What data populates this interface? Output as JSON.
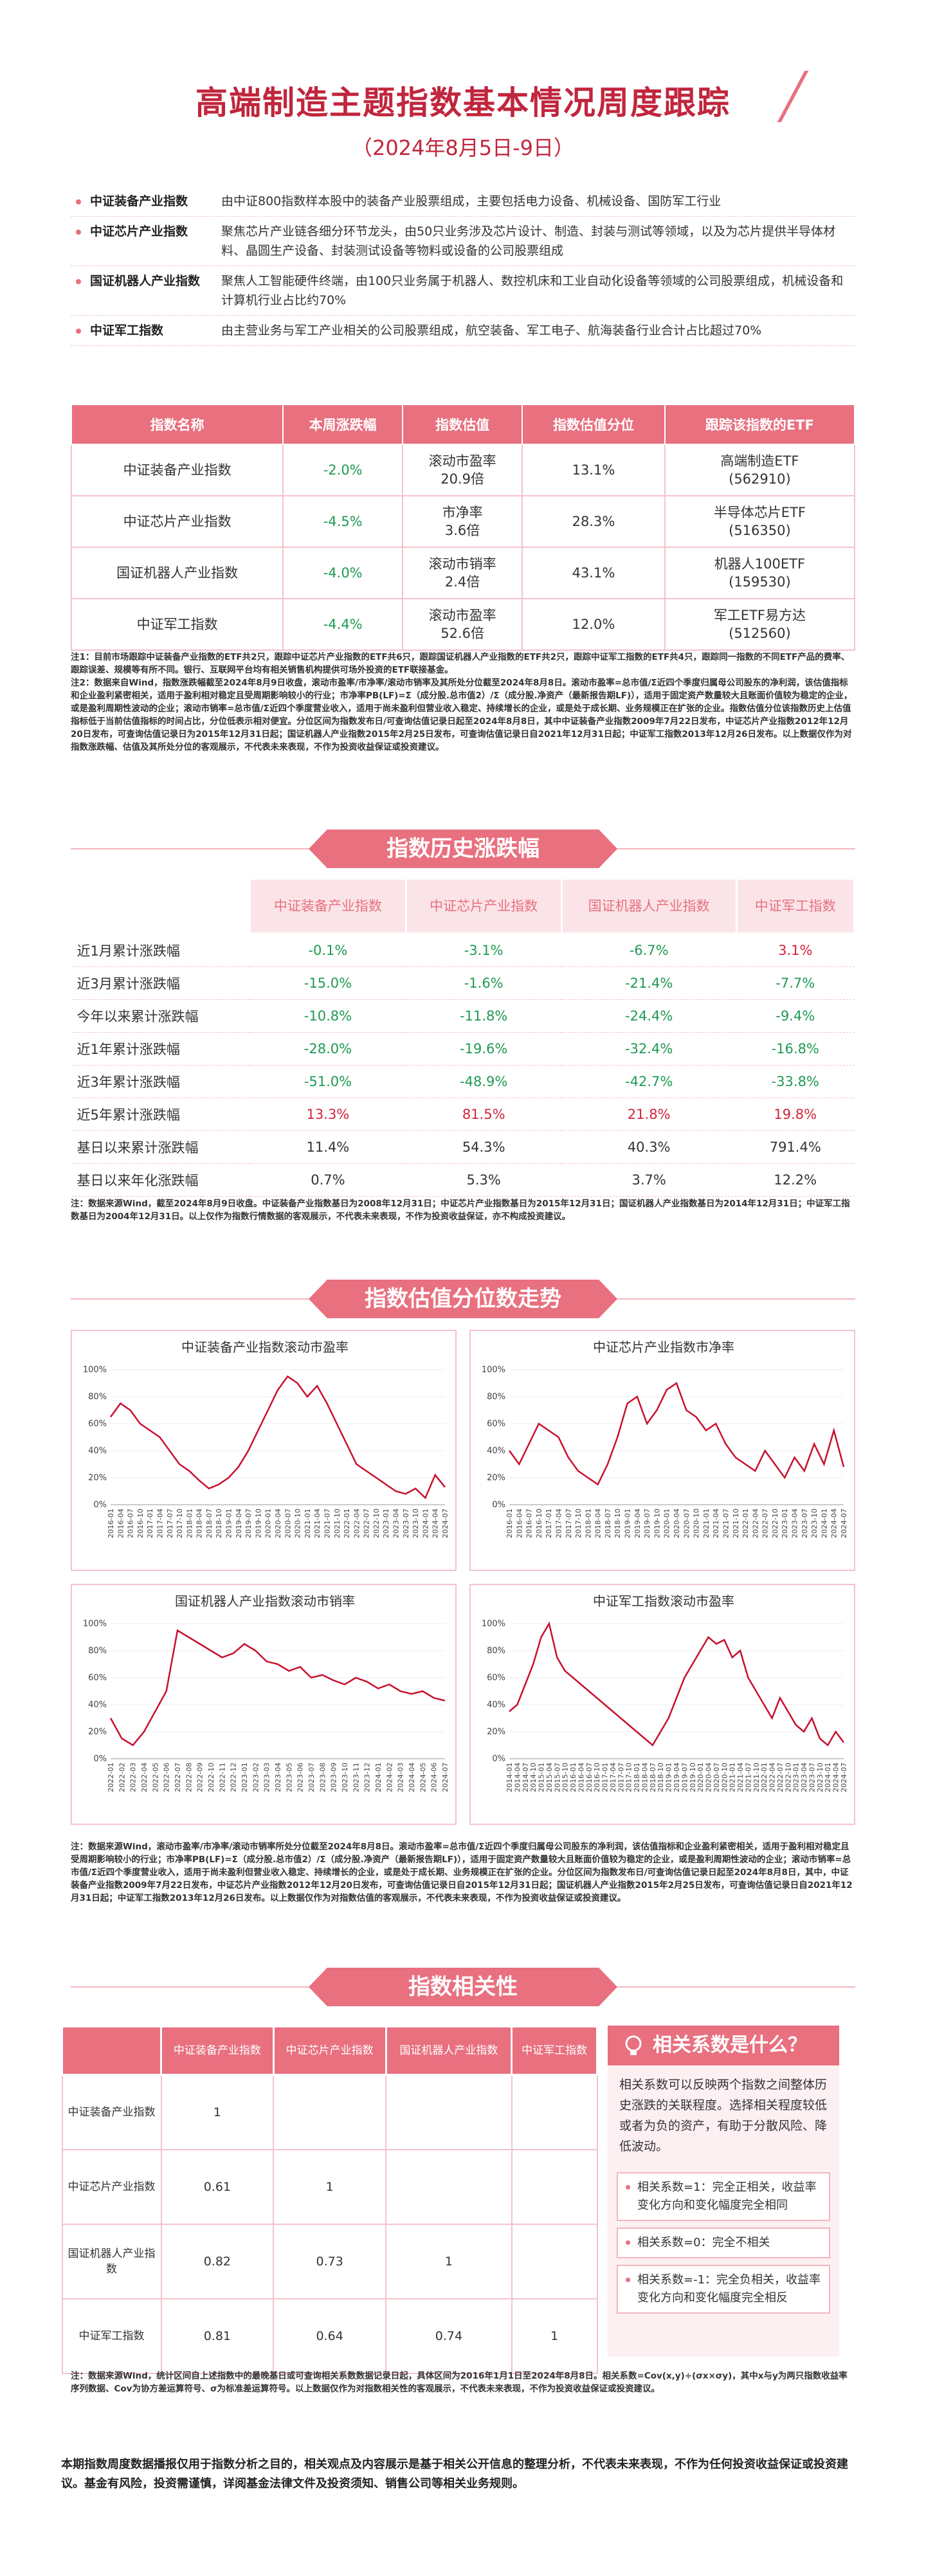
{
  "header": {
    "title": "高端制造主题指数基本情况周度跟踪",
    "subtitle": "（2024年8月5日-9日）"
  },
  "index_intro": [
    {
      "name": "中证装备产业指数",
      "desc": "由中证800指数样本股中的装备产业股票组成，主要包括电力设备、机械设备、国防军工行业"
    },
    {
      "name": "中证芯片产业指数",
      "desc": "聚焦芯片产业链各细分环节龙头，由50只业务涉及芯片设计、制造、封装与测试等领域，以及为芯片提供半导体材料、晶圆生产设备、封装测试设备等物料或设备的公司股票组成"
    },
    {
      "name": "国证机器人产业指数",
      "desc": "聚焦人工智能硬件终端，由100只业务属于机器人、数控机床和工业自动化设备等领域的公司股票组成，机械设备和计算机行业占比约70%"
    },
    {
      "name": "中证军工指数",
      "desc": "由主营业务与军工产业相关的公司股票组成，航空装备、军工电子、航海装备行业合计占比超过70%"
    }
  ],
  "summary_table": {
    "columns": [
      "指数名称",
      "本周涨跌幅",
      "指数估值",
      "指数估值分位",
      "跟踪该指数的ETF"
    ],
    "rows": [
      {
        "name": "中证装备产业指数",
        "weekly_change": "-2.0%",
        "valuation_metric": "滚动市盈率",
        "valuation_value": "20.9倍",
        "percentile": "13.1%",
        "etf_name": "高端制造ETF",
        "etf_code": "(562910)"
      },
      {
        "name": "中证芯片产业指数",
        "weekly_change": "-4.5%",
        "valuation_metric": "市净率",
        "valuation_value": "3.6倍",
        "percentile": "28.3%",
        "etf_name": "半导体芯片ETF",
        "etf_code": "(516350)"
      },
      {
        "name": "国证机器人产业指数",
        "weekly_change": "-4.0%",
        "valuation_metric": "滚动市销率",
        "valuation_value": "2.4倍",
        "percentile": "43.1%",
        "etf_name": "机器人100ETF",
        "etf_code": "(159530)"
      },
      {
        "name": "中证军工指数",
        "weekly_change": "-4.4%",
        "valuation_metric": "滚动市盈率",
        "valuation_value": "52.6倍",
        "percentile": "12.0%",
        "etf_name": "军工ETF易方达",
        "etf_code": "(512560)"
      }
    ]
  },
  "note1": [
    "注1：目前市场跟踪中证装备产业指数的ETF共2只，跟踪中证芯片产业指数的ETF共6只，跟踪国证机器人产业指数的ETF共2只，跟踪中证军工指数的ETF共4只，跟踪同一指数的不同ETF产品的费率、跟踪误差、规模等有所不同。银行、互联网平台均有相关销售机构提供可场外投资的ETF联接基金。",
    "注2：数据来自Wind，指数涨跌幅截至2024年8月9日收盘，滚动市盈率/市净率/滚动市销率及其所处分位截至2024年8月8日。滚动市盈率=总市值/Σ近四个季度归属母公司股东的净利润，该估值指标和企业盈利紧密相关，适用于盈利相对稳定且受周期影响较小的行业；市净率PB(LF)=Σ（成分股.总市值2）/Σ（成分股.净资产（最新报告期LF)），适用于固定资产数量较大且账面价值较为稳定的企业，或是盈利周期性波动的企业；滚动市销率=总市值/Σ近四个季度营业收入，适用于尚未盈利但营业收入稳定、持续增长的企业，或是处于成长期、业务规模正在扩张的企业。指数估值分位该指数历史上估值指标低于当前估值指标的时间占比，分位低表示相对便宜。分位区间为指数发布日/可查询估值记录日起至2024年8月8日，其中中证装备产业指数2009年7月22日发布，中证芯片产业指数2012年12月20日发布，可查询估值记录日为2015年12月31日起；国证机器人产业指数2015年2月25日发布，可查询估值记录日自2021年12月31日起；中证军工指数2013年12月26日发布。以上数据仅作为对指数涨跌幅、估值及其所处分位的客观展示，不代表未来表现，不作为投资收益保证或投资建议。"
  ],
  "history": {
    "title": "指数历史涨跌幅",
    "columns": [
      "中证装备产业指数",
      "中证芯片产业指数",
      "国证机器人产业指数",
      "中证军工指数"
    ],
    "rows": [
      {
        "label": "近1月累计涨跌幅",
        "colored": true,
        "values": [
          "-0.1%",
          "-3.1%",
          "-6.7%",
          "3.1%"
        ]
      },
      {
        "label": "近3月累计涨跌幅",
        "colored": true,
        "values": [
          "-15.0%",
          "-1.6%",
          "-21.4%",
          "-7.7%"
        ]
      },
      {
        "label": "今年以来累计涨跌幅",
        "colored": true,
        "values": [
          "-10.8%",
          "-11.8%",
          "-24.4%",
          "-9.4%"
        ]
      },
      {
        "label": "近1年累计涨跌幅",
        "colored": true,
        "values": [
          "-28.0%",
          "-19.6%",
          "-32.4%",
          "-16.8%"
        ]
      },
      {
        "label": "近3年累计涨跌幅",
        "colored": true,
        "values": [
          "-51.0%",
          "-48.9%",
          "-42.7%",
          "-33.8%"
        ]
      },
      {
        "label": "近5年累计涨跌幅",
        "colored": true,
        "values": [
          "13.3%",
          "81.5%",
          "21.8%",
          "19.8%"
        ]
      },
      {
        "label": "基日以来累计涨跌幅",
        "colored": false,
        "values": [
          "11.4%",
          "54.3%",
          "40.3%",
          "791.4%"
        ]
      },
      {
        "label": "基日以来年化涨跌幅",
        "colored": false,
        "values": [
          "0.7%",
          "5.3%",
          "3.7%",
          "12.2%"
        ]
      }
    ]
  },
  "note2": "注：数据来源Wind，截至2024年8月9日收盘。中证装备产业指数基日为2008年12月31日；中证芯片产业指数基日为2015年12月31日；国证机器人产业指数基日为2014年12月31日；中证军工指数基日为2004年12月31日。以上仅作为指数行情数据的客观展示，不代表未来表现，不作为投资收益保证，亦不构成投资建议。",
  "valuation": {
    "title": "指数估值分位数走势",
    "charts": [
      {
        "type": "line",
        "title": "中证装备产业指数滚动市盈率",
        "color": "#c8102e",
        "ylim": [
          0,
          100
        ],
        "yticks": [
          {
            "value": 0,
            "label": "0%"
          },
          {
            "value": 20,
            "label": "20%"
          },
          {
            "value": 40,
            "label": "40%"
          },
          {
            "value": 60,
            "label": "60%"
          },
          {
            "value": 80,
            "label": "80%"
          },
          {
            "value": 100,
            "label": "100%"
          }
        ],
        "categories": [
          "2016-01",
          "2016-04",
          "2016-07",
          "2016-10",
          "2017-01",
          "2017-04",
          "2017-07",
          "2017-10",
          "2018-01",
          "2018-04",
          "2018-07",
          "2018-10",
          "2019-01",
          "2019-04",
          "2019-07",
          "2019-10",
          "2020-01",
          "2020-04",
          "2020-07",
          "2020-10",
          "2021-01",
          "2021-04",
          "2021-07",
          "2021-10",
          "2022-01",
          "2022-04",
          "2022-07",
          "2022-10",
          "2023-01",
          "2023-04",
          "2023-07",
          "2023-10",
          "2024-01",
          "2024-04",
          "2024-07"
        ],
        "values": [
          65,
          75,
          70,
          60,
          55,
          50,
          40,
          30,
          25,
          18,
          12,
          15,
          20,
          28,
          40,
          55,
          70,
          85,
          95,
          90,
          80,
          88,
          75,
          60,
          45,
          30,
          25,
          20,
          15,
          10,
          8,
          12,
          5,
          22,
          13
        ]
      },
      {
        "type": "line",
        "title": "中证芯片产业指数市净率",
        "color": "#c8102e",
        "ylim": [
          0,
          100
        ],
        "yticks": [
          {
            "value": 0,
            "label": "0%"
          },
          {
            "value": 20,
            "label": "20%"
          },
          {
            "value": 40,
            "label": "40%"
          },
          {
            "value": 60,
            "label": "60%"
          },
          {
            "value": 80,
            "label": "80%"
          },
          {
            "value": 100,
            "label": "100%"
          }
        ],
        "categories": [
          "2016-01",
          "2016-04",
          "2016-07",
          "2016-10",
          "2017-01",
          "2017-04",
          "2017-07",
          "2017-10",
          "2018-01",
          "2018-04",
          "2018-07",
          "2018-10",
          "2019-01",
          "2019-04",
          "2019-07",
          "2019-10",
          "2020-01",
          "2020-04",
          "2020-07",
          "2020-10",
          "2021-01",
          "2021-04",
          "2021-07",
          "2021-10",
          "2022-01",
          "2022-04",
          "2022-07",
          "2022-10",
          "2023-01",
          "2023-04",
          "2023-07",
          "2023-10",
          "2024-01",
          "2024-04",
          "2024-07"
        ],
        "values": [
          40,
          30,
          45,
          60,
          55,
          50,
          35,
          25,
          20,
          15,
          30,
          50,
          75,
          80,
          60,
          70,
          85,
          90,
          70,
          65,
          55,
          60,
          45,
          35,
          30,
          25,
          40,
          30,
          20,
          35,
          25,
          45,
          30,
          55,
          28
        ]
      },
      {
        "type": "line",
        "title": "国证机器人产业指数滚动市销率",
        "color": "#c8102e",
        "ylim": [
          0,
          100
        ],
        "yticks": [
          {
            "value": 0,
            "label": "0%"
          },
          {
            "value": 20,
            "label": "20%"
          },
          {
            "value": 40,
            "label": "40%"
          },
          {
            "value": 60,
            "label": "60%"
          },
          {
            "value": 80,
            "label": "80%"
          },
          {
            "value": 100,
            "label": "100%"
          }
        ],
        "categories": [
          "2022-01",
          "2022-02",
          "2022-03",
          "2022-04",
          "2022-05",
          "2022-06",
          "2022-07",
          "2022-08",
          "2022-09",
          "2022-10",
          "2022-11",
          "2022-12",
          "2023-01",
          "2023-02",
          "2023-03",
          "2023-04",
          "2023-05",
          "2023-06",
          "2023-07",
          "2023-08",
          "2023-09",
          "2023-10",
          "2023-11",
          "2023-12",
          "2024-01",
          "2024-02",
          "2024-03",
          "2024-04",
          "2024-05",
          "2024-06",
          "2024-07"
        ],
        "values": [
          30,
          15,
          10,
          20,
          35,
          50,
          95,
          90,
          85,
          80,
          75,
          78,
          85,
          80,
          72,
          70,
          65,
          68,
          60,
          62,
          58,
          55,
          60,
          57,
          52,
          55,
          50,
          48,
          50,
          45,
          43
        ]
      },
      {
        "type": "line",
        "title": "中证军工指数滚动市盈率",
        "color": "#c8102e",
        "ylim": [
          0,
          100
        ],
        "yticks": [
          {
            "value": 0,
            "label": "0%"
          },
          {
            "value": 20,
            "label": "20%"
          },
          {
            "value": 40,
            "label": "40%"
          },
          {
            "value": 60,
            "label": "60%"
          },
          {
            "value": 80,
            "label": "80%"
          },
          {
            "value": 100,
            "label": "100%"
          }
        ],
        "categories": [
          "2014-01",
          "2014-04",
          "2014-07",
          "2014-10",
          "2015-01",
          "2015-04",
          "2015-07",
          "2015-10",
          "2016-01",
          "2016-04",
          "2016-07",
          "2016-10",
          "2017-01",
          "2017-04",
          "2017-07",
          "2017-10",
          "2018-01",
          "2018-04",
          "2018-07",
          "2018-10",
          "2019-01",
          "2019-04",
          "2019-07",
          "2019-10",
          "2020-01",
          "2020-04",
          "2020-07",
          "2020-10",
          "2021-01",
          "2021-04",
          "2021-07",
          "2021-10",
          "2022-01",
          "2022-04",
          "2022-07",
          "2022-10",
          "2023-01",
          "2023-04",
          "2023-07",
          "2023-10",
          "2024-01",
          "2024-04",
          "2024-07"
        ],
        "values": [
          35,
          40,
          55,
          70,
          90,
          100,
          75,
          65,
          60,
          55,
          50,
          45,
          40,
          35,
          30,
          25,
          20,
          15,
          10,
          20,
          30,
          45,
          60,
          70,
          80,
          90,
          85,
          88,
          75,
          80,
          60,
          50,
          40,
          30,
          45,
          35,
          25,
          20,
          30,
          15,
          10,
          20,
          12
        ]
      }
    ]
  },
  "note3": "注：数据来源Wind，滚动市盈率/市净率/滚动市销率所处分位截至2024年8月8日。滚动市盈率=总市值/Σ近四个季度归属母公司股东的净利润，该估值指标和企业盈利紧密相关，适用于盈利相对稳定且受周期影响较小的行业；市净率PB(LF)=Σ（成分股.总市值2）/Σ（成分股.净资产（最新报告期LF)），适用于固定资产数量较大且账面价值较为稳定的企业，或是盈利周期性波动的企业；滚动市销率=总市值/Σ近四个季度营业收入，适用于尚未盈利但营业收入稳定、持续增长的企业，或是处于成长期、业务规模正在扩张的企业。分位区间为指数发布日/可查询估值记录日起至2024年8月8日，其中，中证装备产业指数2009年7月22日发布，中证芯片产业指数2012年12月20日发布，可查询估值记录日自2015年12月31日起；国证机器人产业指数2015年2月25日发布，可查询估值记录日自2021年12月31日起；中证军工指数2013年12月26日发布。以上数据仅作为对指数估值的客观展示，不代表未来表现，不作为投资收益保证或投资建议。",
  "correlation": {
    "title": "指数相关性",
    "columns": [
      "中证装备产业指数",
      "中证芯片产业指数",
      "国证机器人产业指数",
      "中证军工指数"
    ],
    "rows": [
      {
        "name": "中证装备产业指数",
        "values": [
          "1"
        ]
      },
      {
        "name": "中证芯片产业指数",
        "values": [
          "0.61",
          "1"
        ]
      },
      {
        "name": "国证机器人产业指数",
        "values": [
          "0.82",
          "0.73",
          "1"
        ]
      },
      {
        "name": "中证军工指数",
        "values": [
          "0.81",
          "0.64",
          "0.74",
          "1"
        ]
      }
    ],
    "explain": {
      "title": "相关系数是什么？",
      "body": "相关系数可以反映两个指数之间整体历史涨跌的关联程度。选择相关程度较低或者为负的资产，有助于分散风险、降低波动。",
      "points": [
        "相关系数=1：完全正相关，收益率变化方向和变化幅度完全相同",
        "相关系数=0：完全不相关",
        "相关系数=-1：完全负相关，收益率变化方向和变化幅度完全相反"
      ]
    }
  },
  "note4": "注：数据来源Wind，统计区间自上述指数中的最晚基日或可查询相关系数数据记录日起，具体区间为2016年1月1日至2024年8月8日。相关系数=Cov(x,y)÷(σx×σy)，其中x与y为两只指数收益率序列数据、Cov为协方差运算符号、σ为标准差运算符号。以上数据仅作为对指数相关性的客观展示，不代表未来表现，不作为投资收益保证或投资建议。",
  "footer": "本期指数周度数据播报仅用于指数分析之目的，相关观点及内容展示是基于相关公开信息的整理分析，不代表未来表现，不作为任何投资收益保证或投资建议。基金有风险，投资需谨慎，详阅基金法律文件及投资须知、销售公司等相关业务规则。"
}
